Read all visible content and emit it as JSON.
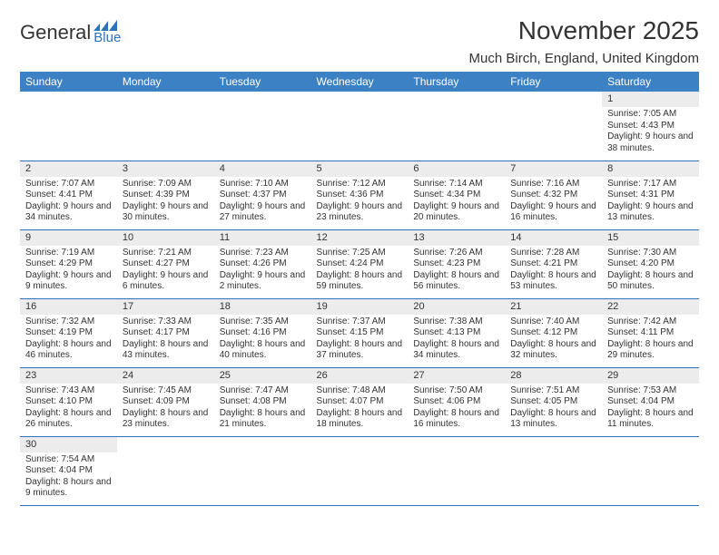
{
  "logo": {
    "word1": "General",
    "word2": "Blue"
  },
  "title": "November 2025",
  "location": "Much Birch, England, United Kingdom",
  "colors": {
    "header_bg": "#3c81c4",
    "header_text": "#ffffff",
    "rule": "#2e73b8",
    "daynum_bg": "#ececec",
    "text": "#333333",
    "logo_blue": "#2e73b8"
  },
  "day_headers": [
    "Sunday",
    "Monday",
    "Tuesday",
    "Wednesday",
    "Thursday",
    "Friday",
    "Saturday"
  ],
  "weeks": [
    [
      {
        "empty": true
      },
      {
        "empty": true
      },
      {
        "empty": true
      },
      {
        "empty": true
      },
      {
        "empty": true
      },
      {
        "empty": true
      },
      {
        "n": "1",
        "sunrise": "7:05 AM",
        "sunset": "4:43 PM",
        "dl": "Daylight: 9 hours and 38 minutes."
      }
    ],
    [
      {
        "n": "2",
        "sunrise": "7:07 AM",
        "sunset": "4:41 PM",
        "dl": "Daylight: 9 hours and 34 minutes."
      },
      {
        "n": "3",
        "sunrise": "7:09 AM",
        "sunset": "4:39 PM",
        "dl": "Daylight: 9 hours and 30 minutes."
      },
      {
        "n": "4",
        "sunrise": "7:10 AM",
        "sunset": "4:37 PM",
        "dl": "Daylight: 9 hours and 27 minutes."
      },
      {
        "n": "5",
        "sunrise": "7:12 AM",
        "sunset": "4:36 PM",
        "dl": "Daylight: 9 hours and 23 minutes."
      },
      {
        "n": "6",
        "sunrise": "7:14 AM",
        "sunset": "4:34 PM",
        "dl": "Daylight: 9 hours and 20 minutes."
      },
      {
        "n": "7",
        "sunrise": "7:16 AM",
        "sunset": "4:32 PM",
        "dl": "Daylight: 9 hours and 16 minutes."
      },
      {
        "n": "8",
        "sunrise": "7:17 AM",
        "sunset": "4:31 PM",
        "dl": "Daylight: 9 hours and 13 minutes."
      }
    ],
    [
      {
        "n": "9",
        "sunrise": "7:19 AM",
        "sunset": "4:29 PM",
        "dl": "Daylight: 9 hours and 9 minutes."
      },
      {
        "n": "10",
        "sunrise": "7:21 AM",
        "sunset": "4:27 PM",
        "dl": "Daylight: 9 hours and 6 minutes."
      },
      {
        "n": "11",
        "sunrise": "7:23 AM",
        "sunset": "4:26 PM",
        "dl": "Daylight: 9 hours and 2 minutes."
      },
      {
        "n": "12",
        "sunrise": "7:25 AM",
        "sunset": "4:24 PM",
        "dl": "Daylight: 8 hours and 59 minutes."
      },
      {
        "n": "13",
        "sunrise": "7:26 AM",
        "sunset": "4:23 PM",
        "dl": "Daylight: 8 hours and 56 minutes."
      },
      {
        "n": "14",
        "sunrise": "7:28 AM",
        "sunset": "4:21 PM",
        "dl": "Daylight: 8 hours and 53 minutes."
      },
      {
        "n": "15",
        "sunrise": "7:30 AM",
        "sunset": "4:20 PM",
        "dl": "Daylight: 8 hours and 50 minutes."
      }
    ],
    [
      {
        "n": "16",
        "sunrise": "7:32 AM",
        "sunset": "4:19 PM",
        "dl": "Daylight: 8 hours and 46 minutes."
      },
      {
        "n": "17",
        "sunrise": "7:33 AM",
        "sunset": "4:17 PM",
        "dl": "Daylight: 8 hours and 43 minutes."
      },
      {
        "n": "18",
        "sunrise": "7:35 AM",
        "sunset": "4:16 PM",
        "dl": "Daylight: 8 hours and 40 minutes."
      },
      {
        "n": "19",
        "sunrise": "7:37 AM",
        "sunset": "4:15 PM",
        "dl": "Daylight: 8 hours and 37 minutes."
      },
      {
        "n": "20",
        "sunrise": "7:38 AM",
        "sunset": "4:13 PM",
        "dl": "Daylight: 8 hours and 34 minutes."
      },
      {
        "n": "21",
        "sunrise": "7:40 AM",
        "sunset": "4:12 PM",
        "dl": "Daylight: 8 hours and 32 minutes."
      },
      {
        "n": "22",
        "sunrise": "7:42 AM",
        "sunset": "4:11 PM",
        "dl": "Daylight: 8 hours and 29 minutes."
      }
    ],
    [
      {
        "n": "23",
        "sunrise": "7:43 AM",
        "sunset": "4:10 PM",
        "dl": "Daylight: 8 hours and 26 minutes."
      },
      {
        "n": "24",
        "sunrise": "7:45 AM",
        "sunset": "4:09 PM",
        "dl": "Daylight: 8 hours and 23 minutes."
      },
      {
        "n": "25",
        "sunrise": "7:47 AM",
        "sunset": "4:08 PM",
        "dl": "Daylight: 8 hours and 21 minutes."
      },
      {
        "n": "26",
        "sunrise": "7:48 AM",
        "sunset": "4:07 PM",
        "dl": "Daylight: 8 hours and 18 minutes."
      },
      {
        "n": "27",
        "sunrise": "7:50 AM",
        "sunset": "4:06 PM",
        "dl": "Daylight: 8 hours and 16 minutes."
      },
      {
        "n": "28",
        "sunrise": "7:51 AM",
        "sunset": "4:05 PM",
        "dl": "Daylight: 8 hours and 13 minutes."
      },
      {
        "n": "29",
        "sunrise": "7:53 AM",
        "sunset": "4:04 PM",
        "dl": "Daylight: 8 hours and 11 minutes."
      }
    ],
    [
      {
        "n": "30",
        "sunrise": "7:54 AM",
        "sunset": "4:04 PM",
        "dl": "Daylight: 8 hours and 9 minutes."
      },
      {
        "empty": true
      },
      {
        "empty": true
      },
      {
        "empty": true
      },
      {
        "empty": true
      },
      {
        "empty": true
      },
      {
        "empty": true
      }
    ]
  ],
  "labels": {
    "sunrise": "Sunrise: ",
    "sunset": "Sunset: "
  }
}
